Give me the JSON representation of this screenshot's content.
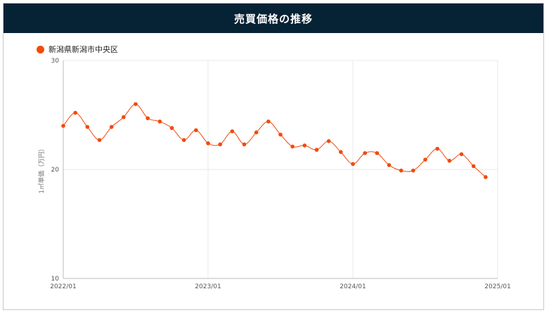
{
  "header": {
    "title": "売買価格の推移"
  },
  "colors": {
    "header_bg": "#062235",
    "series": "#f24a0d",
    "grid": "#e8e8e8"
  },
  "chart_data": {
    "type": "line",
    "title": "売買価格の推移",
    "ylabel": "1㎡単価（万円）",
    "xlabel": "",
    "ylim": [
      10,
      30
    ],
    "y_ticks": [
      "10",
      "20",
      "30"
    ],
    "x_ticks": [
      "2022/01",
      "2023/01",
      "2024/01",
      "2025/01"
    ],
    "grid": true,
    "legend_position": "top-left",
    "series": [
      {
        "name": "新潟県新潟市中央区",
        "x": [
          "2022/01",
          "2022/02",
          "2022/03",
          "2022/04",
          "2022/05",
          "2022/06",
          "2022/07",
          "2022/08",
          "2022/09",
          "2022/10",
          "2022/11",
          "2022/12",
          "2023/01",
          "2023/02",
          "2023/03",
          "2023/04",
          "2023/05",
          "2023/06",
          "2023/07",
          "2023/08",
          "2023/09",
          "2023/10",
          "2023/11",
          "2023/12",
          "2024/01",
          "2024/02",
          "2024/03",
          "2024/04",
          "2024/05",
          "2024/06",
          "2024/07",
          "2024/08",
          "2024/09",
          "2024/10",
          "2024/11",
          "2024/12"
        ],
        "values": [
          24.0,
          25.2,
          23.9,
          22.7,
          23.9,
          24.8,
          26.0,
          24.7,
          24.4,
          23.8,
          22.7,
          23.6,
          22.4,
          22.3,
          23.5,
          22.3,
          23.4,
          24.4,
          23.2,
          22.1,
          22.2,
          21.8,
          22.6,
          21.6,
          20.5,
          21.5,
          21.5,
          20.4,
          19.9,
          19.9,
          20.9,
          21.9,
          20.8,
          21.4,
          20.3,
          19.3
        ]
      }
    ]
  }
}
